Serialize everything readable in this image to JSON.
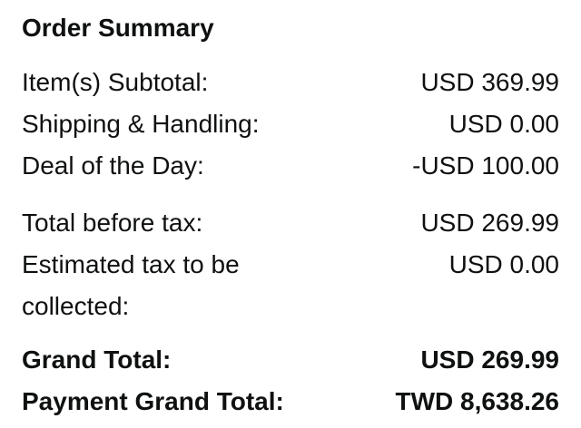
{
  "colors": {
    "text": "#0f1111",
    "background": "#ffffff"
  },
  "order_summary": {
    "title": "Order Summary",
    "charges": [
      {
        "label": "Item(s) Subtotal:",
        "value": "USD 369.99"
      },
      {
        "label": "Shipping & Handling:",
        "value": "USD 0.00"
      },
      {
        "label": "Deal of the Day:",
        "value": "-USD 100.00"
      }
    ],
    "tax_section": [
      {
        "label": "Total before tax:",
        "value": "USD 269.99"
      },
      {
        "label": "Estimated tax to be collected:",
        "value": "USD 0.00"
      }
    ],
    "totals": [
      {
        "label": "Grand Total:",
        "value": "USD 269.99"
      },
      {
        "label": "Payment Grand Total:",
        "value": "TWD 8,638.26"
      }
    ]
  }
}
